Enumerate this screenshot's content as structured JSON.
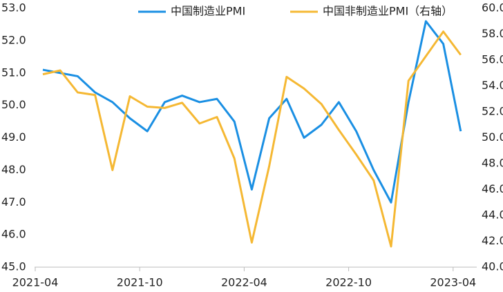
{
  "chart_data": {
    "type": "line",
    "x": [
      "2021-04",
      "2021-05",
      "2021-06",
      "2021-07",
      "2021-08",
      "2021-09",
      "2021-10",
      "2021-11",
      "2021-12",
      "2022-01",
      "2022-02",
      "2022-03",
      "2022-04",
      "2022-05",
      "2022-06",
      "2022-07",
      "2022-08",
      "2022-09",
      "2022-10",
      "2022-11",
      "2022-12",
      "2023-01",
      "2023-02",
      "2023-03",
      "2023-04"
    ],
    "xticks": [
      "2021-04",
      "2021-10",
      "2022-04",
      "2022-10",
      "2023-04"
    ],
    "series": [
      {
        "name": "中国制造业PMI",
        "color": "#1a8fe3",
        "values": [
          51.1,
          51.0,
          50.9,
          50.4,
          50.1,
          49.6,
          49.2,
          50.1,
          50.3,
          50.1,
          50.2,
          49.5,
          47.4,
          49.6,
          50.2,
          49.0,
          49.4,
          50.1,
          49.2,
          48.0,
          47.0,
          50.1,
          52.6,
          51.9,
          49.2
        ]
      },
      {
        "name": "中国非制造业PMI（右轴）",
        "color": "#f5b833",
        "axis": "y2",
        "values": [
          54.9,
          55.2,
          53.5,
          53.3,
          47.5,
          53.2,
          52.4,
          52.3,
          52.7,
          51.1,
          51.6,
          48.4,
          41.9,
          47.8,
          54.7,
          53.8,
          52.6,
          50.6,
          48.7,
          46.7,
          41.6,
          54.4,
          56.3,
          58.2,
          56.4
        ]
      }
    ],
    "ylim": [
      45,
      53
    ],
    "yticks": [
      {
        "value": 45,
        "label": "45.0"
      },
      {
        "value": 46,
        "label": "46.0"
      },
      {
        "value": 47,
        "label": "47.0"
      },
      {
        "value": 48,
        "label": "48.0"
      },
      {
        "value": 49,
        "label": "49.0"
      },
      {
        "value": 50,
        "label": "50.0"
      },
      {
        "value": 51,
        "label": "51.0"
      },
      {
        "value": 52,
        "label": "52.0"
      },
      {
        "value": 53,
        "label": "53.0"
      }
    ],
    "y2lim": [
      40,
      60
    ],
    "y2ticks": [
      {
        "value": 40,
        "label": "40.0"
      },
      {
        "value": 42,
        "label": "42.0"
      },
      {
        "value": 44,
        "label": "44.0"
      },
      {
        "value": 46,
        "label": "46.0"
      },
      {
        "value": 48,
        "label": "48.0"
      },
      {
        "value": 50,
        "label": "50.0"
      },
      {
        "value": 52,
        "label": "52.0"
      },
      {
        "value": 54,
        "label": "54.0"
      },
      {
        "value": 56,
        "label": "56.0"
      },
      {
        "value": 58,
        "label": "58.0"
      },
      {
        "value": 60,
        "label": "60.0"
      }
    ],
    "legend": "top"
  }
}
